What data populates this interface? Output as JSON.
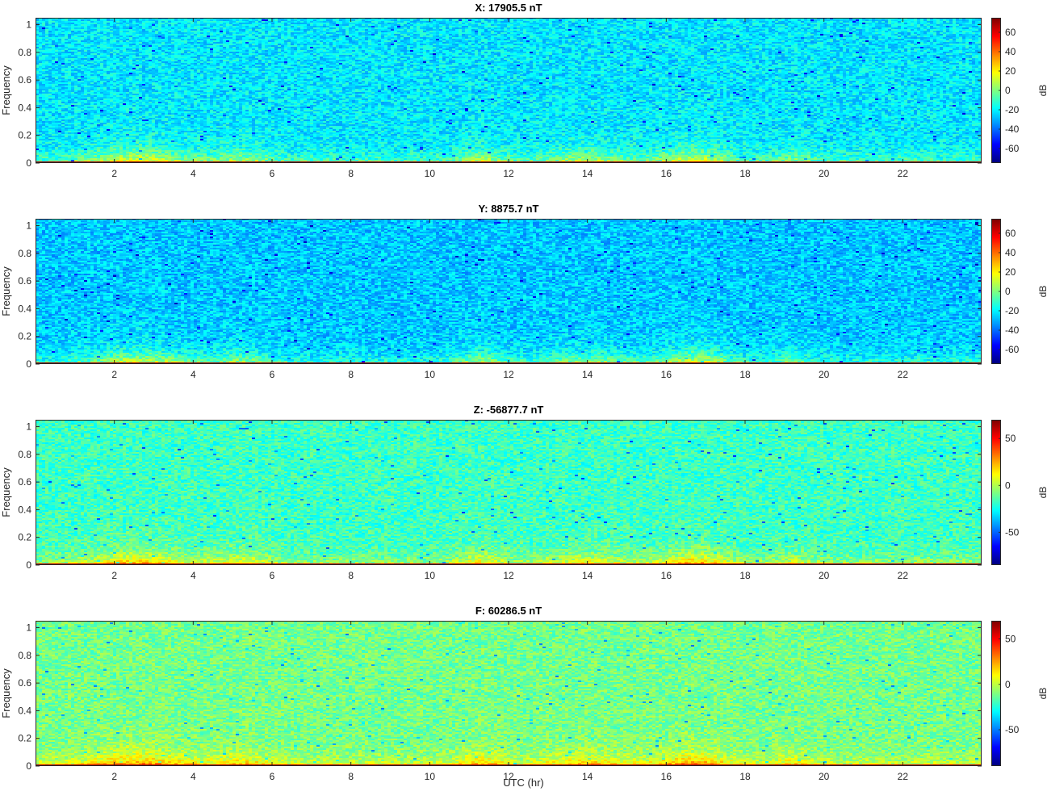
{
  "figure": {
    "xlabel": "UTC (hr)"
  },
  "chart_data": [
    {
      "type": "heatmap",
      "title": "X: 17905.5 nT",
      "xlabel": "",
      "ylabel": "Frequency",
      "xlim": [
        0,
        24
      ],
      "ylim": [
        0,
        1.05
      ],
      "xticks": [
        2,
        4,
        6,
        8,
        10,
        12,
        14,
        16,
        18,
        20,
        22
      ],
      "xticklabels": [
        "2",
        "4",
        "6",
        "8",
        "10",
        "12",
        "14",
        "16",
        "18",
        "20",
        "22"
      ],
      "yticks": [
        0,
        0.2,
        0.4,
        0.6,
        0.8,
        1
      ],
      "yticklabels": [
        "0",
        "0.2",
        "0.4",
        "0.6",
        "0.8",
        "1"
      ],
      "colorbar": {
        "label": "dB",
        "clim": [
          -75,
          75
        ],
        "ticks": [
          -60,
          -40,
          -20,
          0,
          20,
          40,
          60
        ],
        "ticklabels": [
          "-60",
          "-40",
          "-20",
          "0",
          "20",
          "40",
          "60"
        ]
      },
      "colormap": "jet",
      "background_level_db": -22,
      "low_frequency_level_db": 70
    },
    {
      "type": "heatmap",
      "title": "Y: 8875.7 nT",
      "xlabel": "",
      "ylabel": "Frequency",
      "xlim": [
        0,
        24
      ],
      "ylim": [
        0,
        1.05
      ],
      "xticks": [
        2,
        4,
        6,
        8,
        10,
        12,
        14,
        16,
        18,
        20,
        22
      ],
      "xticklabels": [
        "2",
        "4",
        "6",
        "8",
        "10",
        "12",
        "14",
        "16",
        "18",
        "20",
        "22"
      ],
      "yticks": [
        0,
        0.2,
        0.4,
        0.6,
        0.8,
        1
      ],
      "yticklabels": [
        "0",
        "0.2",
        "0.4",
        "0.6",
        "0.8",
        "1"
      ],
      "colorbar": {
        "label": "dB",
        "clim": [
          -75,
          75
        ],
        "ticks": [
          -60,
          -40,
          -20,
          0,
          20,
          40,
          60
        ],
        "ticklabels": [
          "-60",
          "-40",
          "-20",
          "0",
          "20",
          "40",
          "60"
        ]
      },
      "colormap": "jet",
      "background_level_db": -27,
      "low_frequency_level_db": 70
    },
    {
      "type": "heatmap",
      "title": "Z: -56877.7 nT",
      "xlabel": "",
      "ylabel": "Frequency",
      "xlim": [
        0,
        24
      ],
      "ylim": [
        0,
        1.05
      ],
      "xticks": [
        2,
        4,
        6,
        8,
        10,
        12,
        14,
        16,
        18,
        20,
        22
      ],
      "xticklabels": [
        "2",
        "4",
        "6",
        "8",
        "10",
        "12",
        "14",
        "16",
        "18",
        "20",
        "22"
      ],
      "yticks": [
        0,
        0.2,
        0.4,
        0.6,
        0.8,
        1
      ],
      "yticklabels": [
        "0",
        "0.2",
        "0.4",
        "0.6",
        "0.8",
        "1"
      ],
      "colorbar": {
        "label": "dB",
        "clim": [
          -85,
          70
        ],
        "ticks": [
          -50,
          0,
          50
        ],
        "ticklabels": [
          "-50",
          "0",
          "50"
        ]
      },
      "colormap": "jet",
      "background_level_db": -18,
      "low_frequency_level_db": 60
    },
    {
      "type": "heatmap",
      "title": "F: 60286.5 nT",
      "xlabel": "UTC (hr)",
      "ylabel": "Frequency",
      "xlim": [
        0,
        24
      ],
      "ylim": [
        0,
        1.05
      ],
      "xticks": [
        2,
        4,
        6,
        8,
        10,
        12,
        14,
        16,
        18,
        20,
        22
      ],
      "xticklabels": [
        "2",
        "4",
        "6",
        "8",
        "10",
        "12",
        "14",
        "16",
        "18",
        "20",
        "22"
      ],
      "yticks": [
        0,
        0.2,
        0.4,
        0.6,
        0.8,
        1
      ],
      "yticklabels": [
        "0",
        "0.2",
        "0.4",
        "0.6",
        "0.8",
        "1"
      ],
      "colorbar": {
        "label": "dB",
        "clim": [
          -90,
          70
        ],
        "ticks": [
          -50,
          0,
          50
        ],
        "ticklabels": [
          "-50",
          "0",
          "50"
        ]
      },
      "colormap": "jet",
      "background_level_db": -12,
      "low_frequency_level_db": 60
    }
  ]
}
